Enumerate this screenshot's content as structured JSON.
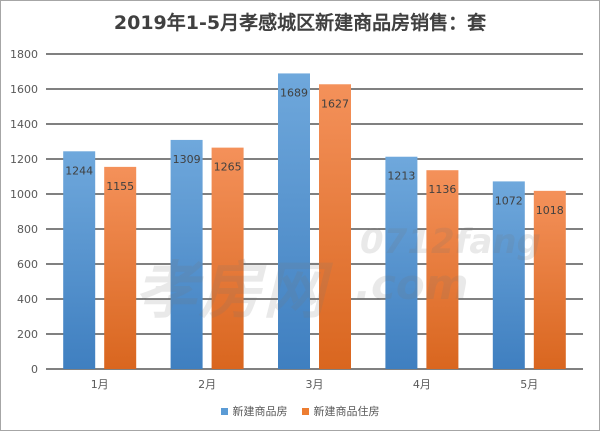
{
  "chart_data": {
    "type": "bar",
    "title": "2019年1-5月孝感城区新建商品房销售：套",
    "categories": [
      "1月",
      "2月",
      "3月",
      "4月",
      "5月"
    ],
    "series": [
      {
        "name": "新建商品房",
        "values": [
          1244,
          1309,
          1689,
          1213,
          1072
        ],
        "color": "#5b9bd5"
      },
      {
        "name": "新建商品住房",
        "values": [
          1155,
          1265,
          1627,
          1136,
          1018
        ],
        "color": "#ed7d31"
      }
    ],
    "ylim": [
      0,
      1800
    ],
    "yticks": [
      0,
      200,
      400,
      600,
      800,
      1000,
      1200,
      1400,
      1600,
      1800
    ],
    "xlabel": "",
    "ylabel": "",
    "grid": true,
    "legend": "bottom"
  },
  "watermark": {
    "cn": "孝房网",
    "en": "0712fang",
    "com": ".com"
  }
}
